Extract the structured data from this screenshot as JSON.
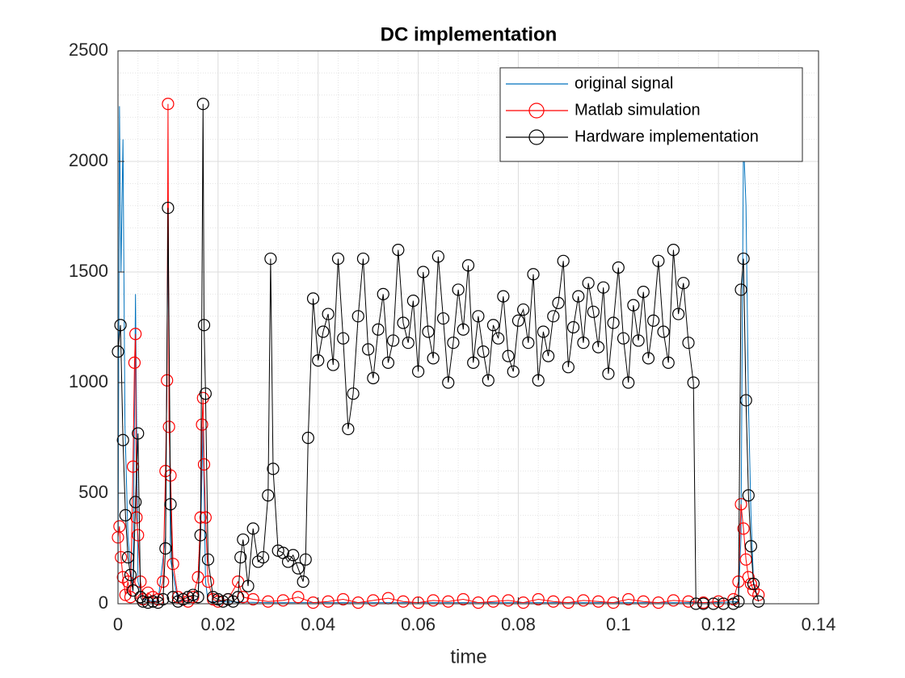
{
  "chart_data": {
    "type": "line",
    "title": "DC implementation",
    "x_label": "time",
    "xlim": [
      0,
      0.14
    ],
    "xticks": [
      0,
      0.02,
      0.04,
      0.06,
      0.08,
      0.1,
      0.12,
      0.14
    ],
    "ylim": [
      0,
      2500
    ],
    "yticks": [
      0,
      500,
      1000,
      1500,
      2000,
      2500
    ],
    "grid": true,
    "minor_grid": true,
    "legend_position": "upper right",
    "series": [
      {
        "name": "original signal",
        "color": "#0072bd",
        "marker": null,
        "x": [
          0,
          0.0003,
          0.0006,
          0.001,
          0.0014,
          0.002,
          0.003,
          0.0035,
          0.004,
          0.005,
          0.008,
          0.0095,
          0.01,
          0.0105,
          0.012,
          0.016,
          0.0165,
          0.017,
          0.0175,
          0.018,
          0.03,
          0.06,
          0.09,
          0.12,
          0.124,
          0.1245,
          0.125,
          0.1255,
          0.126,
          0.1265,
          0.127,
          0.128
        ],
        "values": [
          0,
          2250,
          1500,
          2100,
          800,
          300,
          50,
          1400,
          100,
          20,
          10,
          300,
          1700,
          200,
          10,
          20,
          300,
          800,
          100,
          10,
          5,
          5,
          5,
          5,
          10,
          300,
          2100,
          1800,
          900,
          400,
          100,
          10
        ]
      },
      {
        "name": "Matlab simulation",
        "color": "#ff0000",
        "marker": "circle",
        "x": [
          0,
          0.0003,
          0.0006,
          0.001,
          0.0015,
          0.002,
          0.0025,
          0.003,
          0.0033,
          0.0035,
          0.0037,
          0.004,
          0.0045,
          0.005,
          0.006,
          0.007,
          0.008,
          0.009,
          0.0095,
          0.0098,
          0.01,
          0.0102,
          0.0105,
          0.011,
          0.012,
          0.013,
          0.014,
          0.015,
          0.016,
          0.0165,
          0.0168,
          0.017,
          0.0172,
          0.0175,
          0.018,
          0.019,
          0.02,
          0.022,
          0.024,
          0.025,
          0.027,
          0.03,
          0.033,
          0.036,
          0.039,
          0.042,
          0.045,
          0.048,
          0.051,
          0.054,
          0.057,
          0.06,
          0.063,
          0.066,
          0.069,
          0.072,
          0.075,
          0.078,
          0.081,
          0.084,
          0.087,
          0.09,
          0.093,
          0.096,
          0.099,
          0.102,
          0.105,
          0.108,
          0.111,
          0.114,
          0.117,
          0.12,
          0.123,
          0.124,
          0.1245,
          0.125,
          0.1255,
          0.126,
          0.1265,
          0.127,
          0.128
        ],
        "values": [
          300,
          350,
          210,
          120,
          40,
          100,
          30,
          620,
          1090,
          1220,
          390,
          310,
          100,
          20,
          50,
          30,
          20,
          100,
          600,
          1010,
          2260,
          800,
          580,
          180,
          30,
          20,
          10,
          30,
          120,
          390,
          810,
          930,
          630,
          390,
          100,
          20,
          10,
          20,
          100,
          30,
          20,
          10,
          15,
          30,
          5,
          10,
          20,
          5,
          15,
          25,
          10,
          5,
          15,
          10,
          20,
          5,
          10,
          15,
          5,
          20,
          10,
          5,
          15,
          10,
          5,
          20,
          10,
          5,
          15,
          10,
          5,
          10,
          20,
          100,
          450,
          340,
          200,
          120,
          90,
          60,
          40
        ]
      },
      {
        "name": "Hardware implementation",
        "color": "#000000",
        "marker": "circle",
        "x": [
          0,
          0.0005,
          0.001,
          0.0015,
          0.002,
          0.0025,
          0.003,
          0.0035,
          0.004,
          0.0045,
          0.005,
          0.006,
          0.007,
          0.008,
          0.009,
          0.0095,
          0.01,
          0.0105,
          0.011,
          0.012,
          0.013,
          0.014,
          0.015,
          0.016,
          0.0165,
          0.017,
          0.0172,
          0.0175,
          0.018,
          0.019,
          0.02,
          0.021,
          0.022,
          0.023,
          0.024,
          0.0245,
          0.025,
          0.026,
          0.027,
          0.028,
          0.029,
          0.03,
          0.0305,
          0.031,
          0.032,
          0.033,
          0.034,
          0.035,
          0.036,
          0.037,
          0.0375,
          0.038,
          0.039,
          0.04,
          0.041,
          0.042,
          0.043,
          0.044,
          0.045,
          0.046,
          0.047,
          0.048,
          0.049,
          0.05,
          0.051,
          0.052,
          0.053,
          0.054,
          0.055,
          0.056,
          0.057,
          0.058,
          0.059,
          0.06,
          0.061,
          0.062,
          0.063,
          0.064,
          0.065,
          0.066,
          0.067,
          0.068,
          0.069,
          0.07,
          0.071,
          0.072,
          0.073,
          0.074,
          0.075,
          0.076,
          0.077,
          0.078,
          0.079,
          0.08,
          0.081,
          0.082,
          0.083,
          0.084,
          0.085,
          0.086,
          0.087,
          0.088,
          0.089,
          0.09,
          0.091,
          0.092,
          0.093,
          0.094,
          0.095,
          0.096,
          0.097,
          0.098,
          0.099,
          0.1,
          0.101,
          0.102,
          0.103,
          0.104,
          0.105,
          0.106,
          0.107,
          0.108,
          0.109,
          0.11,
          0.111,
          0.112,
          0.113,
          0.114,
          0.115,
          0.1155,
          0.117,
          0.119,
          0.121,
          0.123,
          0.124,
          0.1245,
          0.125,
          0.1255,
          0.126,
          0.1265,
          0.127,
          0.128
        ],
        "values": [
          1140,
          1260,
          740,
          400,
          210,
          130,
          60,
          460,
          770,
          30,
          10,
          5,
          10,
          5,
          20,
          250,
          1790,
          450,
          30,
          10,
          20,
          30,
          40,
          30,
          310,
          2260,
          1260,
          950,
          200,
          30,
          20,
          10,
          20,
          10,
          30,
          210,
          290,
          80,
          340,
          190,
          210,
          490,
          1560,
          610,
          240,
          230,
          190,
          220,
          160,
          100,
          200,
          750,
          1380,
          1100,
          1230,
          1310,
          1080,
          1560,
          1200,
          790,
          950,
          1300,
          1560,
          1150,
          1020,
          1240,
          1400,
          1090,
          1190,
          1600,
          1270,
          1180,
          1370,
          1050,
          1500,
          1230,
          1110,
          1570,
          1290,
          1000,
          1180,
          1420,
          1240,
          1530,
          1090,
          1300,
          1140,
          1010,
          1260,
          1200,
          1390,
          1120,
          1050,
          1280,
          1330,
          1180,
          1490,
          1010,
          1230,
          1120,
          1300,
          1360,
          1550,
          1070,
          1250,
          1390,
          1180,
          1450,
          1320,
          1160,
          1430,
          1040,
          1270,
          1520,
          1200,
          1000,
          1350,
          1190,
          1410,
          1110,
          1280,
          1550,
          1230,
          1090,
          1600,
          1310,
          1450,
          1180,
          1000,
          0,
          0,
          0,
          0,
          0,
          10,
          1420,
          1560,
          920,
          490,
          260,
          90,
          10
        ]
      }
    ]
  }
}
